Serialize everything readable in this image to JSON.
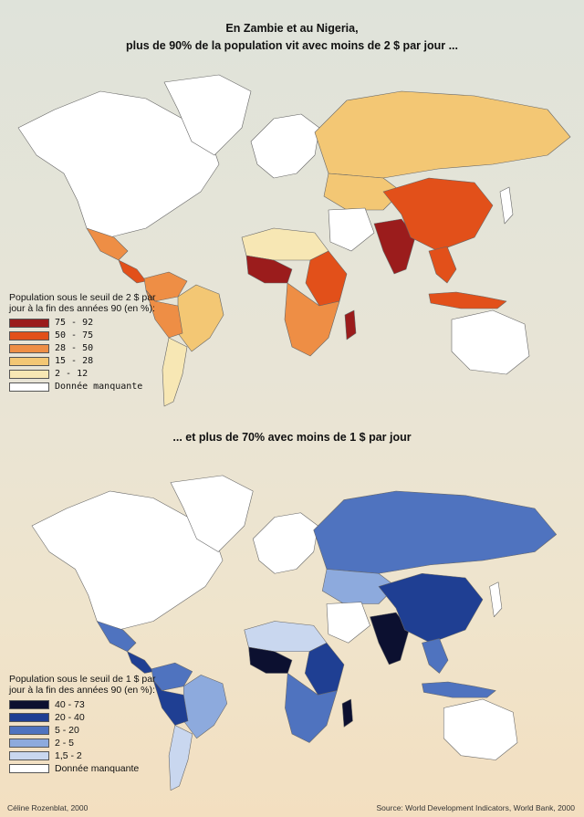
{
  "title_top_line1": "En Zambie et au Nigeria,",
  "title_top_line2": "plus de 90% de la population vit avec moins de 2 $ par jour ...",
  "title_bottom": "... et plus de 70% avec moins de 1 $ par jour",
  "legend_top": {
    "title": "Population sous le seuil de 2 $ par jour à la fin des années 90 (en %):",
    "items": [
      {
        "label": "75 - 92",
        "color": "#9b1c1c"
      },
      {
        "label": "50 - 75",
        "color": "#e2501a"
      },
      {
        "label": "28 - 50",
        "color": "#ee8e45"
      },
      {
        "label": "15 - 28",
        "color": "#f3c774"
      },
      {
        "label": "2 - 12",
        "color": "#f7e7b4"
      },
      {
        "label": "Donnée manquante",
        "color": "#ffffff"
      }
    ]
  },
  "legend_bottom": {
    "title": "Population sous le seuil de 1 $ par jour à la fin des années 90 (en %):",
    "items": [
      {
        "label": "40 - 73",
        "color": "#0c1030"
      },
      {
        "label": "20 - 40",
        "color": "#1f3f93"
      },
      {
        "label": "5 - 20",
        "color": "#4f73bf"
      },
      {
        "label": "2 - 5",
        "color": "#8daadd"
      },
      {
        "label": "1,5 - 2",
        "color": "#c9d7ef"
      },
      {
        "label": "Donnée manquante",
        "color": "#ffffff"
      }
    ]
  },
  "credit": "Céline Rozenblat, 2000",
  "source": "Source: World Development Indicators, World Bank, 2000",
  "map_top_regions": [
    {
      "name": "north-america",
      "color": "#ffffff"
    },
    {
      "name": "greenland",
      "color": "#ffffff"
    },
    {
      "name": "mexico",
      "color": "#ee8e45"
    },
    {
      "name": "central-america",
      "color": "#e2501a"
    },
    {
      "name": "colombia-venezuela",
      "color": "#ee8e45"
    },
    {
      "name": "brazil",
      "color": "#f3c774"
    },
    {
      "name": "peru-bolivia",
      "color": "#ee8e45"
    },
    {
      "name": "southern-cone",
      "color": "#f7e7b4"
    },
    {
      "name": "europe",
      "color": "#ffffff"
    },
    {
      "name": "russia",
      "color": "#f3c774"
    },
    {
      "name": "central-asia",
      "color": "#f3c774"
    },
    {
      "name": "north-africa",
      "color": "#f7e7b4"
    },
    {
      "name": "west-africa",
      "color": "#9b1c1c"
    },
    {
      "name": "east-africa",
      "color": "#e2501a"
    },
    {
      "name": "southern-africa",
      "color": "#ee8e45"
    },
    {
      "name": "madagascar",
      "color": "#9b1c1c"
    },
    {
      "name": "middle-east",
      "color": "#ffffff"
    },
    {
      "name": "india",
      "color": "#9b1c1c"
    },
    {
      "name": "china",
      "color": "#e2501a"
    },
    {
      "name": "southeast-asia",
      "color": "#e2501a"
    },
    {
      "name": "indonesia",
      "color": "#e2501a"
    },
    {
      "name": "australia",
      "color": "#ffffff"
    },
    {
      "name": "japan",
      "color": "#ffffff"
    }
  ],
  "map_bottom_regions": [
    {
      "name": "north-america",
      "color": "#ffffff"
    },
    {
      "name": "greenland",
      "color": "#ffffff"
    },
    {
      "name": "mexico",
      "color": "#4f73bf"
    },
    {
      "name": "central-america",
      "color": "#1f3f93"
    },
    {
      "name": "colombia-venezuela",
      "color": "#4f73bf"
    },
    {
      "name": "brazil",
      "color": "#8daadd"
    },
    {
      "name": "peru-bolivia",
      "color": "#1f3f93"
    },
    {
      "name": "southern-cone",
      "color": "#c9d7ef"
    },
    {
      "name": "europe",
      "color": "#ffffff"
    },
    {
      "name": "russia",
      "color": "#4f73bf"
    },
    {
      "name": "central-asia",
      "color": "#8daadd"
    },
    {
      "name": "north-africa",
      "color": "#c9d7ef"
    },
    {
      "name": "west-africa",
      "color": "#0c1030"
    },
    {
      "name": "east-africa",
      "color": "#1f3f93"
    },
    {
      "name": "southern-africa",
      "color": "#4f73bf"
    },
    {
      "name": "madagascar",
      "color": "#0c1030"
    },
    {
      "name": "middle-east",
      "color": "#ffffff"
    },
    {
      "name": "india",
      "color": "#0c1030"
    },
    {
      "name": "china",
      "color": "#1f3f93"
    },
    {
      "name": "southeast-asia",
      "color": "#4f73bf"
    },
    {
      "name": "indonesia",
      "color": "#4f73bf"
    },
    {
      "name": "australia",
      "color": "#ffffff"
    },
    {
      "name": "japan",
      "color": "#ffffff"
    }
  ]
}
